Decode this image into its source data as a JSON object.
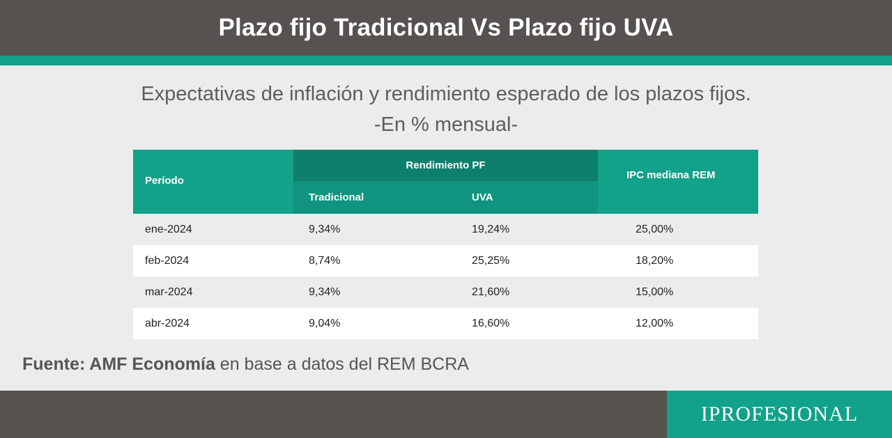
{
  "header": {
    "title": "Plazo fijo Tradicional Vs Plazo fijo UVA"
  },
  "subtitle": {
    "line1": "Expectativas de inflación y rendimiento esperado de los plazos fijos.",
    "line2": "-En % mensual-"
  },
  "table": {
    "headers": {
      "periodo": "Período",
      "group": "Rendimiento PF",
      "tradicional": "Tradicional",
      "uva": "UVA",
      "ipc": "IPC mediana REM"
    },
    "rows": [
      {
        "periodo": "ene-2024",
        "tradicional": "9,34%",
        "uva": "19,24%",
        "ipc": "25,00%"
      },
      {
        "periodo": "feb-2024",
        "tradicional": "8,74%",
        "uva": "25,25%",
        "ipc": "18,20%"
      },
      {
        "periodo": "mar-2024",
        "tradicional": "9,34%",
        "uva": "21,60%",
        "ipc": "15,00%"
      },
      {
        "periodo": "abr-2024",
        "tradicional": "9,04%",
        "uva": "16,60%",
        "ipc": "12,00%"
      }
    ]
  },
  "source": {
    "bold": "Fuente: AMF Economía",
    "rest": " en base a datos del REM BCRA"
  },
  "brand": {
    "name": "IPROFESIONAL"
  },
  "colors": {
    "header_bg": "#555250",
    "accent": "#12a189",
    "group_dark": "#0e7f6c"
  }
}
